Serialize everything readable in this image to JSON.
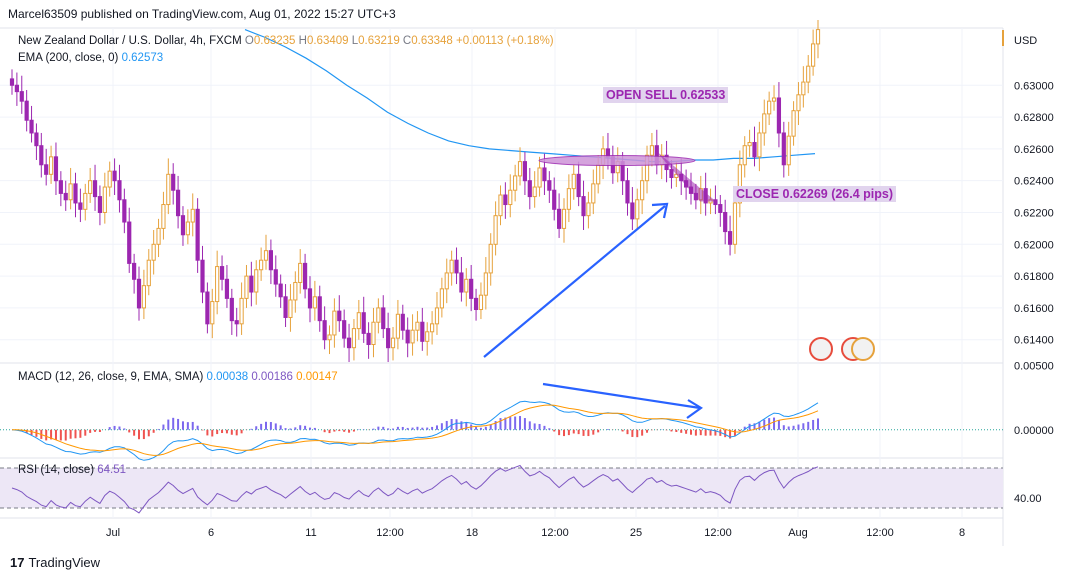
{
  "header": "Marcel63509 published on TradingView.com, Aug 01, 2022 15:27 UTC+3",
  "legend": {
    "symbol": "New Zealand Dollar / U.S. Dollar, 4h, FXCM",
    "o_label": "O",
    "o": "0.63235",
    "h_label": "H",
    "h": "0.63409",
    "l_label": "L",
    "l": "0.63219",
    "c_label": "C",
    "c": "0.63348",
    "change": "+0.00113 (+0.18%)"
  },
  "ema_legend": {
    "label": "EMA (200, close, 0)",
    "value": "0.62573"
  },
  "macd_legend": {
    "label": "MACD (12, 26, close, 9, EMA, SMA)",
    "v1": "0.00038",
    "v2": "0.00186",
    "v3": "0.00147"
  },
  "rsi_legend": {
    "label": "RSI (14, close)",
    "value": "64.51"
  },
  "annotations": {
    "open_sell": "OPEN SELL 0.62533",
    "close": "CLOSE 0.62269 (26.4  pips)"
  },
  "footer": {
    "brand": "TradingView",
    "logo_glyph": "17"
  },
  "colors": {
    "up": "#e6a23c",
    "down": "#9c27b0",
    "ema": "#2196f3",
    "macd_line": "#2196f3",
    "signal_line": "#ff9800",
    "rsi_line": "#7e57c2",
    "rsi_band": "#ede7f6",
    "arrow": "#2962ff"
  },
  "chart_data": [
    {
      "type": "candlestick",
      "title": "New Zealand Dollar / U.S. Dollar, 4h, FXCM",
      "ylabel": "USD",
      "price_currency_label": "USD",
      "ylim": [
        0.6126,
        0.6336
      ],
      "yticks": [
        "0.63000",
        "0.62800",
        "0.62600",
        "0.62400",
        "0.62200",
        "0.62000",
        "0.61800",
        "0.61600",
        "0.61400"
      ],
      "xticks": [
        "Jul",
        "6",
        "11",
        "12:00",
        "18",
        "12:00",
        "25",
        "12:00",
        "Aug",
        "12:00",
        "8"
      ],
      "closes": [
        0.63,
        0.6296,
        0.629,
        0.6278,
        0.627,
        0.6262,
        0.625,
        0.6244,
        0.6255,
        0.624,
        0.6232,
        0.6228,
        0.6238,
        0.6226,
        0.6222,
        0.6232,
        0.624,
        0.623,
        0.622,
        0.6236,
        0.6246,
        0.624,
        0.6228,
        0.6214,
        0.6188,
        0.6178,
        0.616,
        0.6174,
        0.619,
        0.62,
        0.621,
        0.6225,
        0.6244,
        0.6234,
        0.6218,
        0.6206,
        0.6214,
        0.6222,
        0.619,
        0.617,
        0.615,
        0.6164,
        0.6186,
        0.6178,
        0.6166,
        0.6152,
        0.615,
        0.6166,
        0.618,
        0.617,
        0.6184,
        0.619,
        0.6196,
        0.6184,
        0.6175,
        0.6167,
        0.6154,
        0.6165,
        0.6176,
        0.6188,
        0.6172,
        0.616,
        0.6167,
        0.6152,
        0.614,
        0.6143,
        0.6158,
        0.6152,
        0.6141,
        0.6135,
        0.6147,
        0.6157,
        0.6144,
        0.6137,
        0.6151,
        0.616,
        0.6147,
        0.6135,
        0.6141,
        0.6156,
        0.6146,
        0.6138,
        0.6146,
        0.6151,
        0.6139,
        0.6145,
        0.615,
        0.616,
        0.6172,
        0.6182,
        0.619,
        0.6182,
        0.617,
        0.6178,
        0.6166,
        0.6159,
        0.6168,
        0.6182,
        0.62,
        0.6218,
        0.6231,
        0.6225,
        0.6234,
        0.6243,
        0.6252,
        0.624,
        0.623,
        0.6236,
        0.6248,
        0.624,
        0.6234,
        0.6222,
        0.621,
        0.6222,
        0.6235,
        0.6244,
        0.623,
        0.6218,
        0.6226,
        0.6238,
        0.625,
        0.626,
        0.6255,
        0.6245,
        0.6252,
        0.624,
        0.6226,
        0.6216,
        0.6228,
        0.624,
        0.6256,
        0.6262,
        0.625,
        0.6256,
        0.6247,
        0.6242,
        0.6244,
        0.624,
        0.6236,
        0.6232,
        0.6228,
        0.6235,
        0.6226,
        0.6228,
        0.6225,
        0.622,
        0.6208,
        0.62,
        0.6226,
        0.625,
        0.6262,
        0.6264,
        0.6255,
        0.627,
        0.6282,
        0.629,
        0.6292,
        0.627,
        0.625,
        0.6268,
        0.6284,
        0.6294,
        0.6302,
        0.6312,
        0.6326,
        0.6335
      ],
      "open_sell_level": 0.62533,
      "close_level": 0.62269,
      "pips": 26.4,
      "ema200": [
        0.6335,
        0.633,
        0.6324,
        0.6317,
        0.6309,
        0.63,
        0.6292,
        0.6283,
        0.6276,
        0.627,
        0.6265,
        0.6262,
        0.626,
        0.6259,
        0.6258,
        0.6257,
        0.6256,
        0.6255,
        0.6254,
        0.6253,
        0.6252,
        0.6252,
        0.6253,
        0.6253,
        0.6254,
        0.6254,
        0.6255,
        0.6256,
        0.6257
      ]
    },
    {
      "type": "histogram-line",
      "title": "MACD (12, 26, close, 9, EMA, SMA)",
      "yticks": [
        "0.00500",
        "0.00000"
      ],
      "ylim": [
        -0.0022,
        0.0052
      ]
    },
    {
      "type": "line",
      "title": "RSI (14, close)",
      "yticks": [
        "40.00"
      ],
      "ylim": [
        20,
        80
      ],
      "band": [
        30,
        70
      ]
    }
  ]
}
